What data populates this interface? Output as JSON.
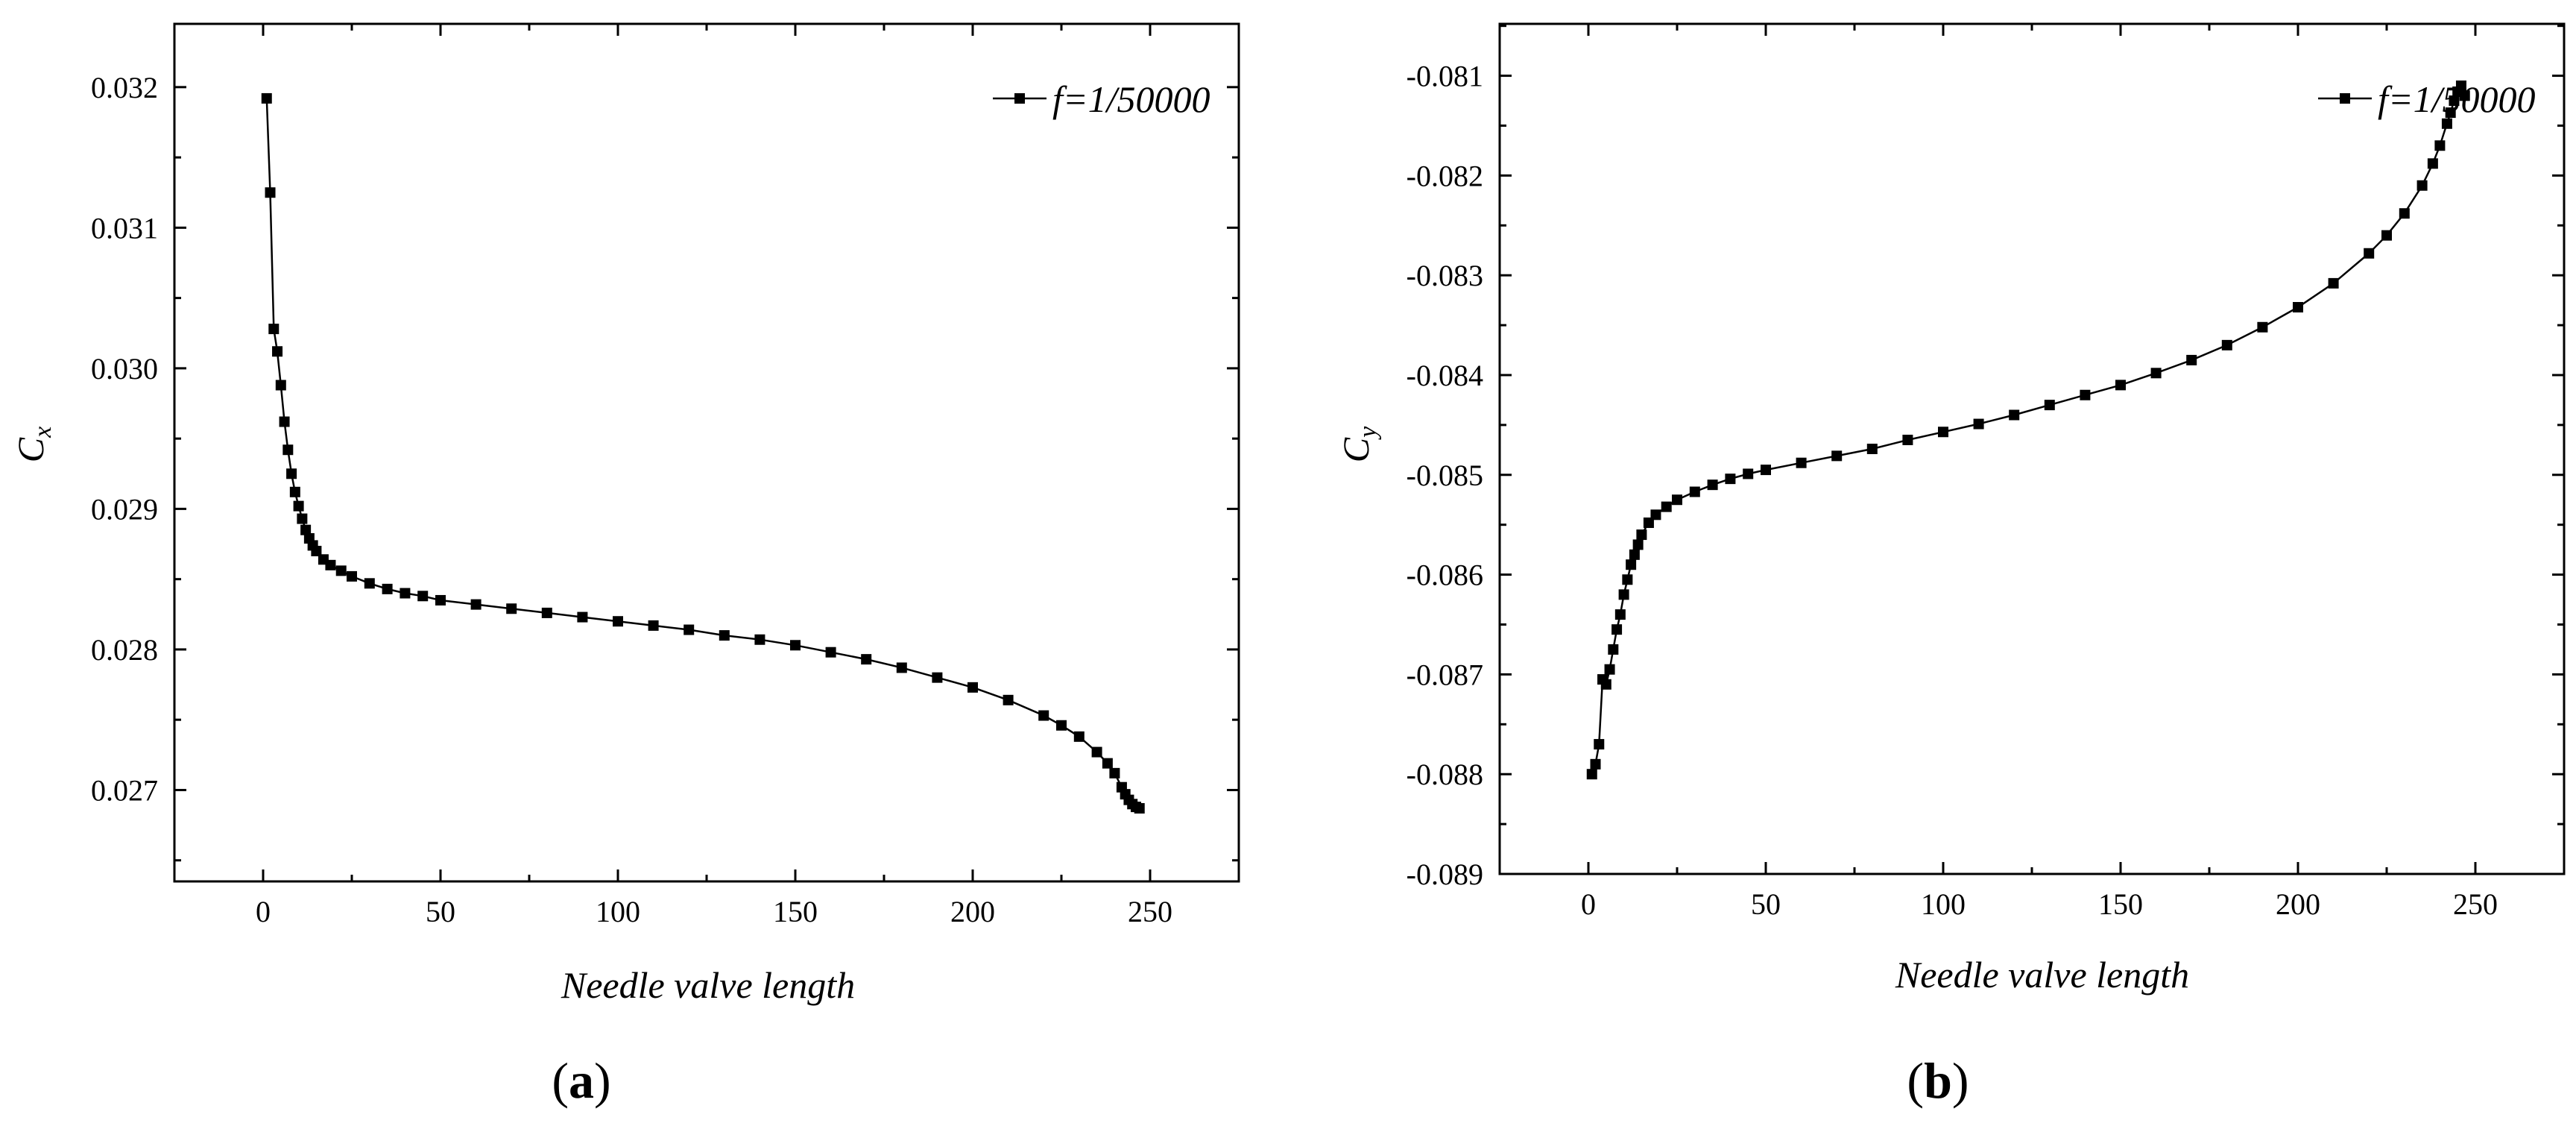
{
  "figure": {
    "panel_a_label": "a",
    "panel_b_label": "b"
  },
  "chart_data": [
    {
      "type": "line",
      "id": "a",
      "xlabel": "Needle valve length",
      "ylabel_main": "C",
      "ylabel_sub": "x",
      "xlim": [
        -25,
        275
      ],
      "ylim": [
        0.02635,
        0.03245
      ],
      "xticks": [
        0,
        50,
        100,
        150,
        200,
        250
      ],
      "xtick_labels": [
        "0",
        "50",
        "100",
        "150",
        "200",
        "250"
      ],
      "yticks": [
        0.027,
        0.028,
        0.029,
        0.03,
        0.031,
        0.032
      ],
      "ytick_labels": [
        "0.027",
        "0.028",
        "0.029",
        "0.030",
        "0.031",
        "0.032"
      ],
      "legend": "top-right",
      "series": [
        {
          "name": "f=1/50000",
          "marker": "square",
          "color": "#000000",
          "points": [
            [
              1,
              0.03192
            ],
            [
              2,
              0.03125
            ],
            [
              3,
              0.03028
            ],
            [
              4,
              0.03012
            ],
            [
              5,
              0.02988
            ],
            [
              6,
              0.02962
            ],
            [
              7,
              0.02942
            ],
            [
              8,
              0.02925
            ],
            [
              9,
              0.02912
            ],
            [
              10,
              0.02902
            ],
            [
              11,
              0.02893
            ],
            [
              12,
              0.02885
            ],
            [
              13,
              0.02879
            ],
            [
              14,
              0.02874
            ],
            [
              15,
              0.0287
            ],
            [
              17,
              0.02864
            ],
            [
              19,
              0.0286
            ],
            [
              22,
              0.02856
            ],
            [
              25,
              0.02852
            ],
            [
              30,
              0.02847
            ],
            [
              35,
              0.02843
            ],
            [
              40,
              0.0284
            ],
            [
              45,
              0.02838
            ],
            [
              50,
              0.02835
            ],
            [
              60,
              0.02832
            ],
            [
              70,
              0.02829
            ],
            [
              80,
              0.02826
            ],
            [
              90,
              0.02823
            ],
            [
              100,
              0.0282
            ],
            [
              110,
              0.02817
            ],
            [
              120,
              0.02814
            ],
            [
              130,
              0.0281
            ],
            [
              140,
              0.02807
            ],
            [
              150,
              0.02803
            ],
            [
              160,
              0.02798
            ],
            [
              170,
              0.02793
            ],
            [
              180,
              0.02787
            ],
            [
              190,
              0.0278
            ],
            [
              200,
              0.02773
            ],
            [
              210,
              0.02764
            ],
            [
              220,
              0.02753
            ],
            [
              225,
              0.02746
            ],
            [
              230,
              0.02738
            ],
            [
              235,
              0.02727
            ],
            [
              238,
              0.02719
            ],
            [
              240,
              0.02712
            ],
            [
              242,
              0.02702
            ],
            [
              243,
              0.02697
            ],
            [
              244,
              0.02693
            ],
            [
              245,
              0.0269
            ],
            [
              246,
              0.02688
            ],
            [
              247,
              0.02687
            ]
          ]
        }
      ]
    },
    {
      "type": "line",
      "id": "b",
      "xlabel": "Needle valve length",
      "ylabel_main": "C",
      "ylabel_sub": "y",
      "xlim": [
        -25,
        275
      ],
      "ylim": [
        -0.089,
        -0.08048
      ],
      "xticks": [
        0,
        50,
        100,
        150,
        200,
        250
      ],
      "xtick_labels": [
        "0",
        "50",
        "100",
        "150",
        "200",
        "250"
      ],
      "yticks": [
        -0.089,
        -0.088,
        -0.087,
        -0.086,
        -0.085,
        -0.084,
        -0.083,
        -0.082,
        -0.081
      ],
      "ytick_labels": [
        "-0.089",
        "-0.088",
        "-0.087",
        "-0.086",
        "-0.085",
        "-0.084",
        "-0.083",
        "-0.082",
        "-0.081"
      ],
      "legend": "top-right",
      "series": [
        {
          "name": "f=1/50000",
          "marker": "square",
          "color": "#000000",
          "points": [
            [
              1,
              -0.088
            ],
            [
              2,
              -0.0879
            ],
            [
              3,
              -0.0877
            ],
            [
              4,
              -0.08705
            ],
            [
              5,
              -0.0871
            ],
            [
              6,
              -0.08695
            ],
            [
              7,
              -0.08675
            ],
            [
              8,
              -0.08655
            ],
            [
              9,
              -0.0864
            ],
            [
              10,
              -0.0862
            ],
            [
              11,
              -0.08605
            ],
            [
              12,
              -0.0859
            ],
            [
              13,
              -0.0858
            ],
            [
              14,
              -0.0857
            ],
            [
              15,
              -0.0856
            ],
            [
              17,
              -0.08548
            ],
            [
              19,
              -0.0854
            ],
            [
              22,
              -0.08532
            ],
            [
              25,
              -0.08525
            ],
            [
              30,
              -0.08517
            ],
            [
              35,
              -0.0851
            ],
            [
              40,
              -0.08504
            ],
            [
              45,
              -0.08499
            ],
            [
              50,
              -0.08495
            ],
            [
              60,
              -0.08488
            ],
            [
              70,
              -0.08481
            ],
            [
              80,
              -0.08474
            ],
            [
              90,
              -0.08465
            ],
            [
              100,
              -0.08457
            ],
            [
              110,
              -0.08449
            ],
            [
              120,
              -0.0844
            ],
            [
              130,
              -0.0843
            ],
            [
              140,
              -0.0842
            ],
            [
              150,
              -0.0841
            ],
            [
              160,
              -0.08398
            ],
            [
              170,
              -0.08385
            ],
            [
              180,
              -0.0837
            ],
            [
              190,
              -0.08352
            ],
            [
              200,
              -0.08332
            ],
            [
              210,
              -0.08308
            ],
            [
              220,
              -0.08278
            ],
            [
              225,
              -0.0826
            ],
            [
              230,
              -0.08238
            ],
            [
              235,
              -0.0821
            ],
            [
              238,
              -0.08188
            ],
            [
              240,
              -0.0817
            ],
            [
              242,
              -0.08148
            ],
            [
              243,
              -0.08137
            ],
            [
              244,
              -0.08125
            ],
            [
              245,
              -0.08116
            ],
            [
              246,
              -0.0811
            ],
            [
              247,
              -0.0812
            ]
          ]
        }
      ]
    }
  ]
}
